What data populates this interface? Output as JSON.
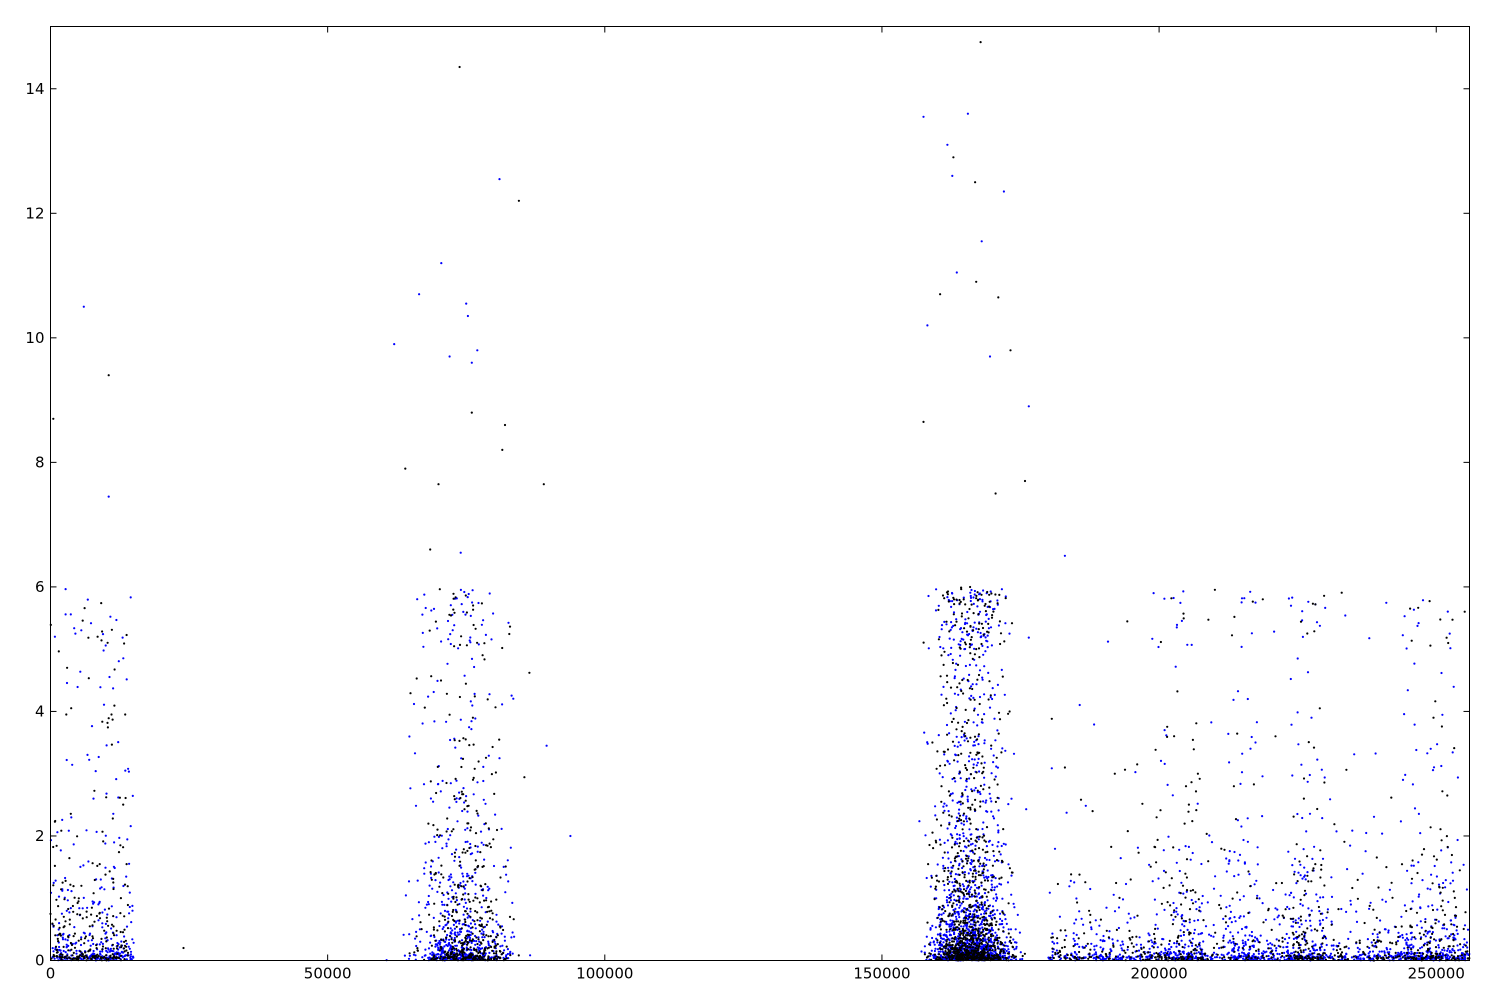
{
  "chart_data": {
    "type": "scatter",
    "title": "",
    "xlabel": "",
    "ylabel": "",
    "xlim": [
      0,
      256000
    ],
    "ylim": [
      0,
      15
    ],
    "grid": false,
    "legend": "none",
    "x_ticks": [
      0,
      50000,
      100000,
      150000,
      200000,
      250000
    ],
    "x_tick_labels": [
      "0",
      "50000",
      "100000",
      "150000",
      "200000",
      "250000"
    ],
    "y_ticks": [
      0,
      2,
      4,
      6,
      8,
      10,
      12,
      14
    ],
    "y_tick_labels": [
      "0",
      "2",
      "4",
      "6",
      "8",
      "10",
      "12",
      "14"
    ],
    "series": [
      {
        "color": "#0000ff",
        "clusters": [
          {
            "x_range": [
              0,
              15000
            ],
            "count": 340,
            "scale": 0.9
          },
          {
            "x_range": [
              60000,
              94000
            ],
            "center": 74000,
            "count": 650,
            "scale": 1.3
          },
          {
            "x_range": [
              152000,
              180000
            ],
            "center": 166000,
            "count": 1500,
            "scale": 1.6
          },
          {
            "x_range": [
              180000,
              256000
            ],
            "count": 900,
            "scale": 0.45
          },
          {
            "x_range": [
              198000,
              208000
            ],
            "count": 120,
            "scale": 0.9
          },
          {
            "x_range": [
              212000,
              218000
            ],
            "count": 110,
            "scale": 1.0
          },
          {
            "x_range": [
              223000,
              230000
            ],
            "count": 140,
            "scale": 1.2
          },
          {
            "x_range": [
              244000,
              254000
            ],
            "count": 150,
            "scale": 1.0
          }
        ],
        "outliers": [
          [
            6000,
            10.5
          ],
          [
            10500,
            7.45
          ],
          [
            800,
            5.2
          ],
          [
            4500,
            5.25
          ],
          [
            13500,
            3.05
          ],
          [
            62000,
            9.9
          ],
          [
            66500,
            10.7
          ],
          [
            70500,
            11.2
          ],
          [
            75000,
            10.55
          ],
          [
            75300,
            10.35
          ],
          [
            77000,
            9.8
          ],
          [
            81000,
            12.55
          ],
          [
            76000,
            9.6
          ],
          [
            74000,
            6.55
          ],
          [
            72000,
            9.7
          ],
          [
            157500,
            13.55
          ],
          [
            161800,
            13.1
          ],
          [
            163500,
            11.05
          ],
          [
            165500,
            13.6
          ],
          [
            168000,
            11.55
          ],
          [
            172000,
            12.35
          ],
          [
            158200,
            10.2
          ],
          [
            176500,
            8.9
          ],
          [
            162700,
            12.6
          ],
          [
            169500,
            9.7
          ],
          [
            199000,
            5.9
          ],
          [
            201000,
            3.7
          ],
          [
            216000,
            4.2
          ],
          [
            225000,
            4.85
          ],
          [
            227500,
            3.9
          ],
          [
            244000,
            2.9
          ],
          [
            249000,
            3.4
          ],
          [
            183000,
            6.5
          ],
          [
            89500,
            3.45
          ],
          [
            93800,
            2.0
          ]
        ]
      },
      {
        "color": "#000000",
        "clusters": [
          {
            "x_range": [
              0,
              14000
            ],
            "count": 260,
            "scale": 1.0
          },
          {
            "x_range": [
              60000,
              92000
            ],
            "center": 75000,
            "count": 450,
            "scale": 1.4
          },
          {
            "x_range": [
              152000,
              180000
            ],
            "center": 166000,
            "count": 1000,
            "scale": 1.7
          },
          {
            "x_range": [
              180000,
              256000
            ],
            "count": 450,
            "scale": 0.5
          },
          {
            "x_range": [
              199000,
              208000
            ],
            "count": 80,
            "scale": 1.0
          },
          {
            "x_range": [
              224000,
              230000
            ],
            "count": 90,
            "scale": 1.3
          },
          {
            "x_range": [
              245000,
              254000
            ],
            "count": 90,
            "scale": 1.1
          }
        ],
        "outliers": [
          [
            10500,
            9.4
          ],
          [
            500,
            8.7
          ],
          [
            8500,
            5.2
          ],
          [
            3000,
            4.7
          ],
          [
            11000,
            3.95
          ],
          [
            73800,
            14.35
          ],
          [
            84500,
            12.2
          ],
          [
            81500,
            8.2
          ],
          [
            64000,
            7.9
          ],
          [
            68500,
            6.6
          ],
          [
            70000,
            7.65
          ],
          [
            89000,
            7.65
          ],
          [
            82000,
            8.6
          ],
          [
            76000,
            8.8
          ],
          [
            24000,
            0.2
          ],
          [
            167800,
            14.75
          ],
          [
            162900,
            12.9
          ],
          [
            166800,
            12.5
          ],
          [
            167000,
            10.9
          ],
          [
            171000,
            10.65
          ],
          [
            160500,
            10.7
          ],
          [
            173200,
            9.8
          ],
          [
            157500,
            8.65
          ],
          [
            170500,
            7.5
          ],
          [
            175800,
            7.7
          ],
          [
            183000,
            3.1
          ],
          [
            192000,
            3.0
          ],
          [
            207000,
            3.0
          ],
          [
            221000,
            3.6
          ],
          [
            229000,
            4.05
          ],
          [
            249500,
            3.9
          ],
          [
            252000,
            2.65
          ],
          [
            241000,
            1.5
          ],
          [
            188000,
            2.4
          ],
          [
            213500,
            2.8
          ]
        ]
      }
    ]
  }
}
